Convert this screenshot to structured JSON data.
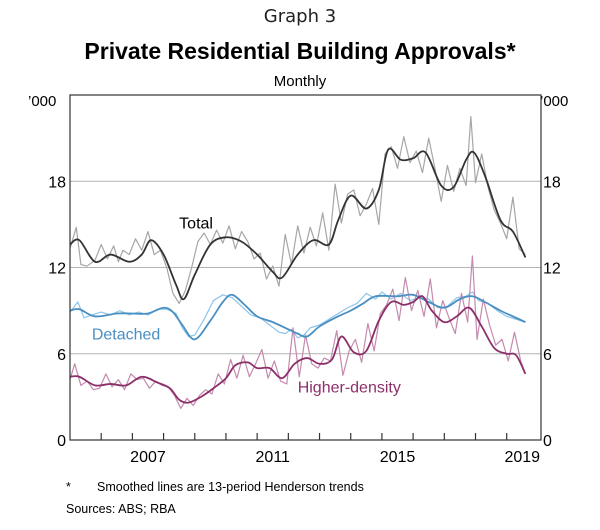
{
  "header": {
    "graph_number": "Graph 3",
    "title": "Private Residential Building Approvals*",
    "subtitle": "Monthly",
    "unit_left": "’000",
    "unit_right": "’000"
  },
  "footer": {
    "note_marker": "*",
    "note": "Smoothed lines are 13-period Henderson trends",
    "sources": "Sources:  ABS; RBA"
  },
  "chart_data": {
    "type": "line",
    "title": "Private Residential Building Approvals*",
    "subtitle": "Monthly",
    "xlabel": "",
    "ylabel": "’000",
    "xlim": [
      2005.0,
      2020.1
    ],
    "ylim": [
      0,
      24
    ],
    "y_ticks": [
      0,
      6,
      12,
      18
    ],
    "y_tick_labels": [
      "0",
      "6",
      "12",
      "18"
    ],
    "x_tick_years": [
      2006,
      2007,
      2008,
      2009,
      2010,
      2011,
      2012,
      2013,
      2014,
      2015,
      2016,
      2017,
      2018,
      2019
    ],
    "x_labels": [
      {
        "label": "2007",
        "x": 2007.5
      },
      {
        "label": "2011",
        "x": 2011.5
      },
      {
        "label": "2015",
        "x": 2015.5
      },
      {
        "label": "2019",
        "x": 2019.5
      }
    ],
    "grid": true,
    "colors": {
      "total": "#333333",
      "total_raw": "#a6a6a6",
      "detached": "#4a8fc2",
      "detached_raw": "#8cc4ea",
      "higher": "#8c2f6a",
      "higher_raw": "#c48aae"
    },
    "annotations": [
      {
        "text": "Total",
        "series": "Total",
        "x": 2008.5,
        "y": 14.7
      },
      {
        "text": "Detached",
        "series": "Detached",
        "x": 2005.7,
        "y": 7.0
      },
      {
        "text": "Higher-density",
        "series": "Higher-density",
        "x": 2012.3,
        "y": 3.3
      }
    ],
    "series": [
      {
        "name": "Total",
        "kind": "trend",
        "x": [
          2005.0,
          2005.3,
          2005.8,
          2006.3,
          2006.9,
          2007.3,
          2007.6,
          2008.0,
          2008.4,
          2008.65,
          2009.0,
          2009.5,
          2010.0,
          2010.5,
          2011.0,
          2011.5,
          2011.8,
          2012.3,
          2012.8,
          2013.3,
          2013.6,
          2014.0,
          2014.5,
          2014.9,
          2015.2,
          2015.6,
          2016.0,
          2016.4,
          2016.9,
          2017.3,
          2017.7,
          2017.95,
          2018.3,
          2018.8,
          2019.2,
          2019.6
        ],
        "values": [
          13.6,
          13.9,
          12.4,
          12.9,
          12.4,
          12.9,
          13.9,
          12.9,
          10.8,
          9.8,
          11.5,
          13.6,
          14.1,
          13.8,
          12.9,
          11.7,
          11.3,
          12.9,
          13.9,
          13.6,
          15.3,
          17.0,
          16.1,
          17.4,
          20.2,
          19.5,
          19.6,
          20.0,
          17.7,
          17.6,
          19.5,
          20.0,
          18.4,
          15.3,
          14.5,
          12.7
        ]
      },
      {
        "name": "Total (raw)",
        "kind": "raw",
        "x": [
          2005.0,
          2005.2,
          2005.35,
          2005.55,
          2005.8,
          2006.0,
          2006.2,
          2006.4,
          2006.55,
          2006.7,
          2006.9,
          2007.1,
          2007.3,
          2007.5,
          2007.7,
          2007.9,
          2008.1,
          2008.3,
          2008.5,
          2008.7,
          2008.9,
          2009.1,
          2009.3,
          2009.5,
          2009.7,
          2009.9,
          2010.1,
          2010.3,
          2010.5,
          2010.7,
          2010.9,
          2011.1,
          2011.3,
          2011.5,
          2011.7,
          2011.9,
          2012.1,
          2012.3,
          2012.5,
          2012.7,
          2012.9,
          2013.1,
          2013.3,
          2013.5,
          2013.7,
          2013.9,
          2014.1,
          2014.3,
          2014.5,
          2014.7,
          2014.9,
          2015.1,
          2015.3,
          2015.5,
          2015.7,
          2015.9,
          2016.1,
          2016.3,
          2016.5,
          2016.7,
          2016.9,
          2017.1,
          2017.3,
          2017.5,
          2017.7,
          2017.85,
          2018.0,
          2018.2,
          2018.4,
          2018.6,
          2018.8,
          2019.0,
          2019.2,
          2019.4,
          2019.6
        ],
        "values": [
          13.3,
          14.8,
          12.2,
          12.1,
          12.5,
          13.6,
          12.6,
          13.5,
          12.4,
          13.2,
          12.9,
          14.0,
          13.2,
          14.5,
          12.9,
          13.2,
          12.0,
          10.2,
          9.5,
          10.4,
          12.0,
          13.8,
          14.4,
          13.6,
          14.6,
          13.7,
          14.9,
          13.3,
          14.5,
          13.8,
          12.6,
          13.0,
          11.2,
          12.1,
          10.7,
          14.3,
          12.2,
          14.9,
          13.0,
          14.8,
          13.5,
          15.8,
          13.2,
          17.8,
          15.1,
          17.1,
          17.4,
          15.6,
          16.4,
          17.5,
          15.0,
          19.9,
          20.4,
          18.9,
          21.1,
          19.3,
          20.1,
          18.6,
          21.0,
          18.9,
          16.6,
          19.1,
          17.3,
          18.9,
          17.7,
          22.5,
          17.9,
          19.9,
          17.6,
          16.0,
          15.1,
          14.0,
          16.9,
          13.3,
          12.9
        ]
      },
      {
        "name": "Detached",
        "kind": "trend",
        "x": [
          2005.0,
          2005.3,
          2005.8,
          2006.5,
          2007.0,
          2007.5,
          2008.0,
          2008.3,
          2008.6,
          2009.0,
          2009.5,
          2009.9,
          2010.2,
          2010.6,
          2011.0,
          2011.5,
          2012.0,
          2012.3,
          2012.6,
          2013.0,
          2013.5,
          2014.0,
          2014.4,
          2014.8,
          2015.5,
          2016.0,
          2016.5,
          2017.0,
          2017.5,
          2017.9,
          2018.3,
          2018.8,
          2019.2,
          2019.6
        ],
        "values": [
          9.0,
          9.1,
          8.6,
          8.8,
          8.8,
          8.8,
          9.2,
          8.9,
          8.0,
          7.0,
          8.3,
          9.6,
          10.1,
          9.4,
          8.6,
          8.2,
          7.7,
          7.4,
          7.2,
          7.9,
          8.5,
          9.0,
          9.5,
          10.0,
          10.0,
          10.1,
          9.6,
          9.2,
          9.8,
          10.0,
          9.6,
          9.0,
          8.6,
          8.2
        ]
      },
      {
        "name": "Detached (raw)",
        "kind": "raw",
        "x": [
          2005.0,
          2005.25,
          2005.45,
          2005.7,
          2006.0,
          2006.3,
          2006.6,
          2006.9,
          2007.2,
          2007.5,
          2007.8,
          2008.1,
          2008.4,
          2008.6,
          2008.8,
          2009.0,
          2009.3,
          2009.6,
          2009.9,
          2010.2,
          2010.5,
          2010.8,
          2011.1,
          2011.4,
          2011.7,
          2011.9,
          2012.1,
          2012.3,
          2012.5,
          2012.7,
          2013.0,
          2013.3,
          2013.6,
          2013.9,
          2014.2,
          2014.5,
          2014.8,
          2015.0,
          2015.3,
          2015.6,
          2015.9,
          2016.2,
          2016.5,
          2016.8,
          2017.1,
          2017.4,
          2017.7,
          2017.9,
          2018.1,
          2018.4,
          2018.7,
          2019.0,
          2019.3,
          2019.6
        ],
        "values": [
          8.9,
          9.6,
          8.5,
          8.7,
          8.9,
          8.7,
          9.0,
          8.7,
          8.9,
          8.7,
          9.1,
          9.1,
          8.8,
          7.8,
          7.2,
          7.3,
          8.4,
          9.7,
          10.1,
          9.9,
          9.3,
          8.7,
          8.5,
          8.0,
          7.5,
          7.4,
          7.7,
          7.1,
          7.3,
          7.8,
          8.0,
          8.4,
          8.8,
          9.2,
          9.5,
          10.2,
          9.8,
          10.3,
          9.8,
          10.2,
          9.7,
          9.9,
          9.8,
          9.2,
          9.3,
          9.9,
          10.0,
          10.3,
          9.7,
          9.5,
          9.0,
          8.6,
          8.4,
          8.2
        ]
      },
      {
        "name": "Higher-density",
        "kind": "trend",
        "x": [
          2005.0,
          2005.3,
          2005.8,
          2006.3,
          2006.8,
          2007.3,
          2007.8,
          2008.2,
          2008.5,
          2008.8,
          2009.2,
          2009.6,
          2010.0,
          2010.3,
          2010.7,
          2011.0,
          2011.4,
          2011.8,
          2012.2,
          2012.6,
          2013.0,
          2013.4,
          2013.7,
          2014.1,
          2014.5,
          2014.9,
          2015.3,
          2015.7,
          2016.0,
          2016.3,
          2016.6,
          2017.0,
          2017.4,
          2017.8,
          2018.2,
          2018.6,
          2019.0,
          2019.3,
          2019.6
        ],
        "values": [
          4.4,
          4.4,
          3.8,
          3.9,
          3.8,
          4.4,
          4.0,
          3.6,
          2.8,
          2.6,
          3.0,
          3.6,
          4.3,
          5.2,
          5.4,
          5.0,
          5.0,
          4.3,
          5.3,
          5.7,
          5.3,
          5.6,
          7.2,
          6.1,
          6.2,
          8.3,
          9.6,
          9.4,
          9.6,
          10.0,
          9.0,
          8.2,
          8.6,
          9.2,
          7.9,
          6.4,
          6.0,
          5.9,
          4.6
        ]
      },
      {
        "name": "Higher-density (raw)",
        "kind": "raw",
        "x": [
          2005.0,
          2005.15,
          2005.35,
          2005.55,
          2005.75,
          2005.95,
          2006.15,
          2006.35,
          2006.55,
          2006.75,
          2006.95,
          2007.15,
          2007.35,
          2007.55,
          2007.75,
          2007.95,
          2008.15,
          2008.35,
          2008.55,
          2008.75,
          2008.95,
          2009.15,
          2009.35,
          2009.55,
          2009.75,
          2009.95,
          2010.15,
          2010.35,
          2010.55,
          2010.75,
          2010.95,
          2011.15,
          2011.35,
          2011.55,
          2011.75,
          2011.95,
          2012.15,
          2012.35,
          2012.55,
          2012.75,
          2012.95,
          2013.15,
          2013.35,
          2013.55,
          2013.75,
          2013.95,
          2014.15,
          2014.35,
          2014.55,
          2014.75,
          2014.95,
          2015.15,
          2015.35,
          2015.55,
          2015.75,
          2015.95,
          2016.15,
          2016.35,
          2016.55,
          2016.75,
          2016.95,
          2017.15,
          2017.35,
          2017.55,
          2017.75,
          2017.9,
          2018.05,
          2018.25,
          2018.45,
          2018.65,
          2018.85,
          2019.05,
          2019.25,
          2019.45,
          2019.6
        ],
        "values": [
          4.2,
          5.3,
          3.8,
          4.1,
          3.5,
          3.6,
          4.6,
          3.7,
          4.2,
          3.5,
          4.6,
          4.2,
          4.3,
          3.6,
          4.1,
          3.8,
          3.7,
          3.1,
          2.2,
          2.9,
          2.4,
          3.1,
          3.5,
          3.2,
          4.6,
          3.9,
          5.6,
          4.3,
          5.9,
          4.4,
          5.3,
          6.3,
          4.3,
          5.5,
          4.1,
          3.9,
          7.8,
          4.4,
          7.3,
          5.3,
          5.0,
          5.7,
          5.5,
          7.6,
          4.5,
          6.2,
          7.0,
          5.4,
          8.1,
          6.2,
          8.8,
          9.4,
          10.5,
          8.3,
          11.3,
          9.0,
          10.4,
          8.6,
          11.2,
          7.8,
          9.7,
          8.5,
          7.4,
          10.2,
          8.2,
          12.8,
          7.0,
          9.8,
          8.0,
          6.6,
          7.0,
          5.5,
          7.5,
          5.5,
          4.6
        ]
      }
    ]
  }
}
